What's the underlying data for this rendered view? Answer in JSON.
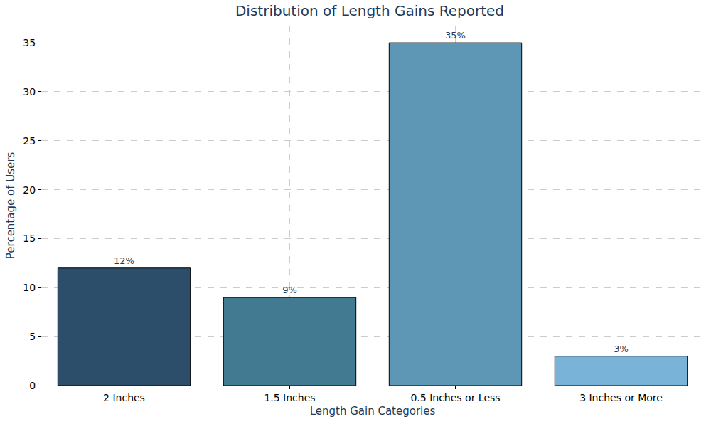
{
  "chart_data": {
    "type": "bar",
    "title": "Distribution of Length Gains Reported",
    "x_label": "Length Gain Categories",
    "y_label": "Percentage of Users",
    "categories": [
      "2 Inches",
      "1.5 Inches",
      "0.5 Inches or Less",
      "3 Inches or More"
    ],
    "values": [
      12,
      9,
      35,
      3
    ],
    "value_labels": [
      "12%",
      "9%",
      "35%",
      "3%"
    ],
    "colors": [
      "#2c4e6a",
      "#417a91",
      "#5e97b5",
      "#7ab3d8"
    ],
    "ylim": [
      0,
      36.75
    ],
    "yticks": [
      0,
      5,
      10,
      15,
      20,
      25,
      30,
      35
    ],
    "grid": true,
    "data_labels": true
  }
}
